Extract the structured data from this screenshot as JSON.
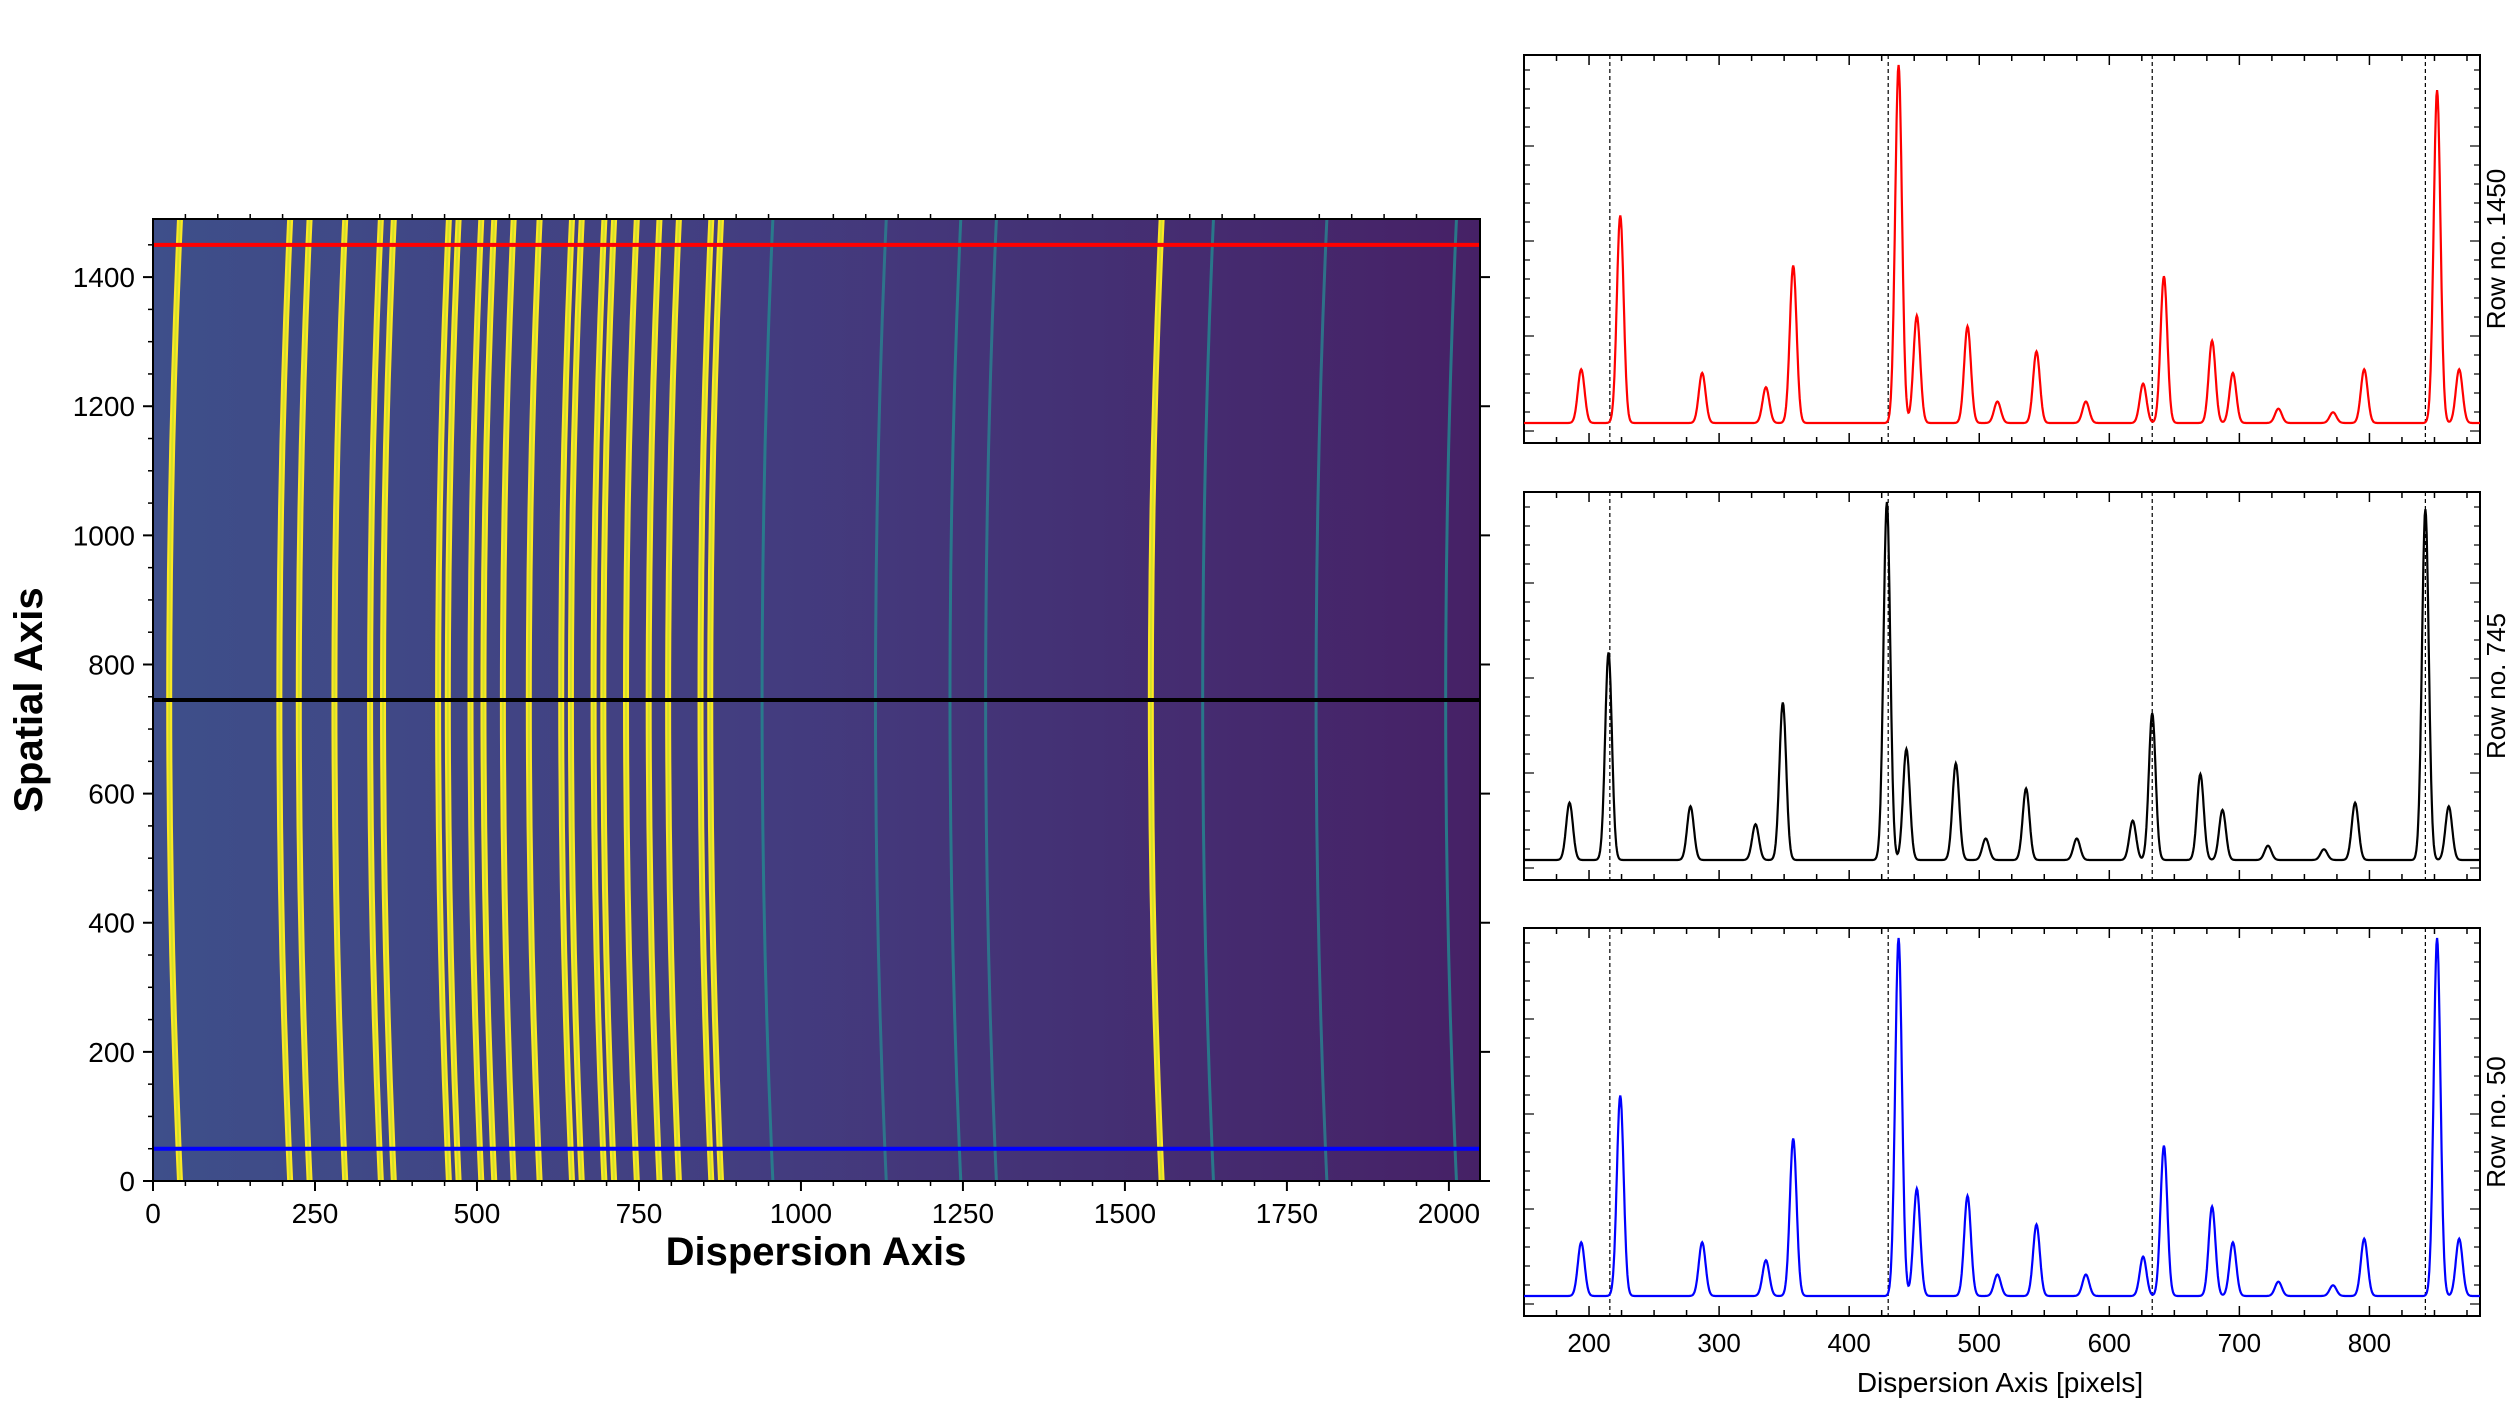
{
  "chart_data": [
    {
      "type": "heatmap",
      "xlabel": "Dispersion Axis",
      "ylabel": "Spatial Axis",
      "xlim": [
        0,
        2048
      ],
      "ylim": [
        0,
        1490
      ],
      "xticks": [
        0,
        250,
        500,
        750,
        1000,
        1250,
        1500,
        1750,
        2000
      ],
      "yticks": [
        0,
        200,
        400,
        600,
        800,
        1000,
        1200,
        1400
      ],
      "colormap": "viridis",
      "grid": false,
      "bright_lines_x": [
        25,
        195,
        225,
        280,
        335,
        355,
        440,
        455,
        490,
        510,
        540,
        580,
        630,
        645,
        680,
        695,
        730,
        765,
        795,
        845,
        860,
        1540
      ],
      "faint_lines_x": [
        940,
        1115,
        1230,
        1285,
        1620,
        1795,
        1995
      ],
      "line_curvature_px": 18,
      "background": {
        "left": "#3e4f8a",
        "right": "#462166"
      },
      "overlay_rows": [
        {
          "row": 1450,
          "color": "#ff0000"
        },
        {
          "row": 745,
          "color": "#000000"
        },
        {
          "row": 50,
          "color": "#0000ff"
        }
      ]
    },
    {
      "type": "line",
      "ylabel": "Row no. 1450",
      "color": "#ff0000",
      "xlim": [
        150,
        885
      ],
      "vlines": [
        216,
        430,
        633,
        843
      ],
      "peaks": [
        {
          "x": 194,
          "h": 0.15
        },
        {
          "x": 224,
          "h": 0.58
        },
        {
          "x": 287,
          "h": 0.14
        },
        {
          "x": 336,
          "h": 0.1
        },
        {
          "x": 357,
          "h": 0.44
        },
        {
          "x": 438,
          "h": 1.0
        },
        {
          "x": 452,
          "h": 0.3
        },
        {
          "x": 491,
          "h": 0.27
        },
        {
          "x": 514,
          "h": 0.06
        },
        {
          "x": 544,
          "h": 0.2
        },
        {
          "x": 582,
          "h": 0.06
        },
        {
          "x": 626,
          "h": 0.11
        },
        {
          "x": 642,
          "h": 0.41
        },
        {
          "x": 679,
          "h": 0.23
        },
        {
          "x": 695,
          "h": 0.14
        },
        {
          "x": 730,
          "h": 0.04
        },
        {
          "x": 772,
          "h": 0.03
        },
        {
          "x": 796,
          "h": 0.15
        },
        {
          "x": 852,
          "h": 0.93
        },
        {
          "x": 869,
          "h": 0.15
        }
      ]
    },
    {
      "type": "line",
      "ylabel": "Row no. 745",
      "color": "#000000",
      "xlim": [
        150,
        885
      ],
      "vlines": [
        216,
        430,
        633,
        843
      ],
      "peaks": [
        {
          "x": 185,
          "h": 0.16
        },
        {
          "x": 215,
          "h": 0.58
        },
        {
          "x": 278,
          "h": 0.15
        },
        {
          "x": 328,
          "h": 0.1
        },
        {
          "x": 349,
          "h": 0.44
        },
        {
          "x": 429,
          "h": 1.0
        },
        {
          "x": 444,
          "h": 0.31
        },
        {
          "x": 482,
          "h": 0.27
        },
        {
          "x": 505,
          "h": 0.06
        },
        {
          "x": 536,
          "h": 0.2
        },
        {
          "x": 575,
          "h": 0.06
        },
        {
          "x": 618,
          "h": 0.11
        },
        {
          "x": 633,
          "h": 0.41
        },
        {
          "x": 670,
          "h": 0.24
        },
        {
          "x": 687,
          "h": 0.14
        },
        {
          "x": 722,
          "h": 0.04
        },
        {
          "x": 765,
          "h": 0.03
        },
        {
          "x": 789,
          "h": 0.16
        },
        {
          "x": 843,
          "h": 0.98
        },
        {
          "x": 861,
          "h": 0.15
        }
      ]
    },
    {
      "type": "line",
      "ylabel": "Row no. 50",
      "xlabel": "Dispersion Axis  [pixels]",
      "color": "#0000ff",
      "xlim": [
        150,
        885
      ],
      "xticks": [
        200,
        300,
        400,
        500,
        600,
        700,
        800
      ],
      "vlines": [
        216,
        430,
        633,
        843
      ],
      "peaks": [
        {
          "x": 194,
          "h": 0.15
        },
        {
          "x": 224,
          "h": 0.56
        },
        {
          "x": 287,
          "h": 0.15
        },
        {
          "x": 336,
          "h": 0.1
        },
        {
          "x": 357,
          "h": 0.44
        },
        {
          "x": 438,
          "h": 1.0
        },
        {
          "x": 452,
          "h": 0.3
        },
        {
          "x": 491,
          "h": 0.28
        },
        {
          "x": 514,
          "h": 0.06
        },
        {
          "x": 544,
          "h": 0.2
        },
        {
          "x": 582,
          "h": 0.06
        },
        {
          "x": 626,
          "h": 0.11
        },
        {
          "x": 642,
          "h": 0.42
        },
        {
          "x": 679,
          "h": 0.25
        },
        {
          "x": 695,
          "h": 0.15
        },
        {
          "x": 730,
          "h": 0.04
        },
        {
          "x": 772,
          "h": 0.03
        },
        {
          "x": 796,
          "h": 0.16
        },
        {
          "x": 852,
          "h": 1.0
        },
        {
          "x": 869,
          "h": 0.16
        }
      ]
    }
  ]
}
